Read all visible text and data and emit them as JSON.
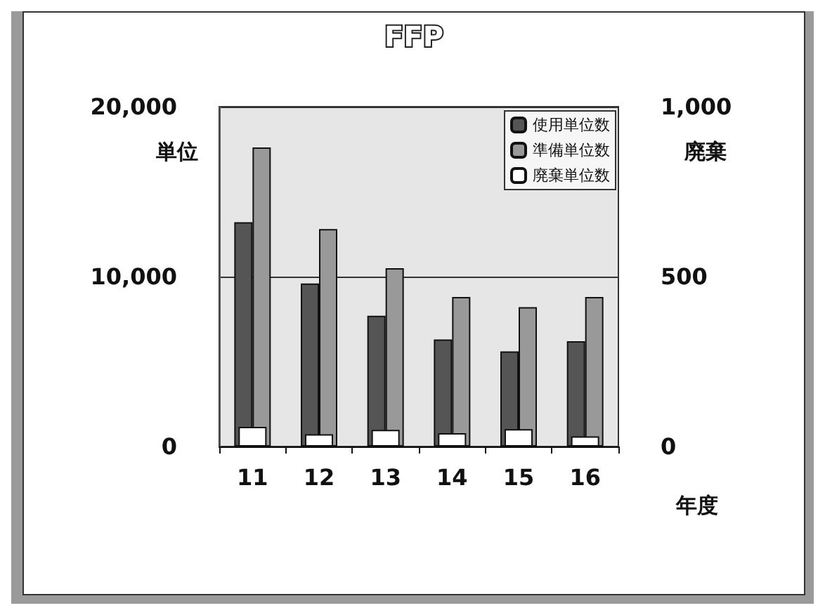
{
  "chart_data": {
    "type": "bar",
    "title": "FFP",
    "xlabel": "年度",
    "ylabel": "単位",
    "y2label": "廃棄",
    "categories": [
      "11",
      "12",
      "13",
      "14",
      "15",
      "16"
    ],
    "series": [
      {
        "name": "使用単位数",
        "color": "#555555",
        "values": [
          13200,
          9600,
          7700,
          6300,
          5600,
          6200
        ]
      },
      {
        "name": "準備単位数",
        "color": "#999999",
        "values": [
          17600,
          12800,
          10500,
          8800,
          8200,
          8800
        ]
      },
      {
        "name": "廃棄単位数",
        "color": "#ffffff",
        "axis": "y2",
        "values": [
          58,
          36,
          49,
          39,
          51,
          30
        ]
      }
    ],
    "ylim": [
      0,
      20000
    ],
    "yticks": [
      {
        "value": 0,
        "label": "0"
      },
      {
        "value": 10000,
        "label": "10,000"
      },
      {
        "value": 20000,
        "label": "20,000"
      }
    ],
    "y2lim": [
      0,
      1000
    ],
    "y2ticks": [
      {
        "value": 0,
        "label": "0"
      },
      {
        "value": 500,
        "label": "500"
      },
      {
        "value": 1000,
        "label": "1,000"
      }
    ],
    "grid": "y",
    "legend": "top right"
  }
}
